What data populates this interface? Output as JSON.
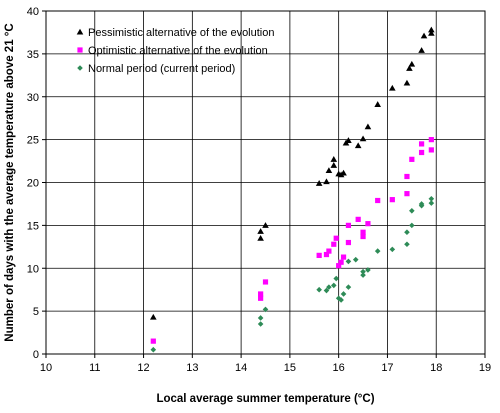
{
  "chart_data": {
    "type": "scatter",
    "xlabel": "Local average summer temperature (°C)",
    "ylabel": "Number of days with the average temperature above 21 °C",
    "xlim": [
      10,
      19
    ],
    "ylim": [
      0,
      40
    ],
    "xticks": [
      "10",
      "11",
      "12",
      "13",
      "14",
      "15",
      "16",
      "17",
      "18",
      "19"
    ],
    "yticks": [
      "0",
      "5",
      "10",
      "15",
      "20",
      "25",
      "30",
      "35",
      "40"
    ],
    "grid": true,
    "legend_position": "top-left",
    "series": [
      {
        "name": "Pessimistic alternative of the evolution",
        "marker": "triangle",
        "color": "#000000",
        "points": [
          [
            12.2,
            4.3
          ],
          [
            14.4,
            13.5
          ],
          [
            14.4,
            14.3
          ],
          [
            14.5,
            15.0
          ],
          [
            15.6,
            19.9
          ],
          [
            15.75,
            20.1
          ],
          [
            15.8,
            21.4
          ],
          [
            15.9,
            22.0
          ],
          [
            15.9,
            22.7
          ],
          [
            16.0,
            21.0
          ],
          [
            16.05,
            20.9
          ],
          [
            16.1,
            21.1
          ],
          [
            16.15,
            24.6
          ],
          [
            16.2,
            24.9
          ],
          [
            16.4,
            24.3
          ],
          [
            16.5,
            25.1
          ],
          [
            16.6,
            26.5
          ],
          [
            16.8,
            29.1
          ],
          [
            17.1,
            31.0
          ],
          [
            17.4,
            31.6
          ],
          [
            17.45,
            33.3
          ],
          [
            17.5,
            33.8
          ],
          [
            17.7,
            35.4
          ],
          [
            17.75,
            37.1
          ],
          [
            17.9,
            37.4
          ],
          [
            17.9,
            37.8
          ]
        ]
      },
      {
        "name": "Optimistic alternative of the evolution",
        "marker": "square",
        "color": "#ff00ff",
        "points": [
          [
            12.2,
            1.5
          ],
          [
            14.4,
            6.5
          ],
          [
            14.4,
            7.0
          ],
          [
            14.5,
            8.4
          ],
          [
            15.6,
            11.5
          ],
          [
            15.75,
            11.6
          ],
          [
            15.8,
            12.0
          ],
          [
            15.9,
            12.8
          ],
          [
            15.95,
            13.5
          ],
          [
            16.0,
            10.3
          ],
          [
            16.05,
            10.7
          ],
          [
            16.1,
            11.3
          ],
          [
            16.2,
            13.0
          ],
          [
            16.2,
            15.0
          ],
          [
            16.4,
            15.7
          ],
          [
            16.5,
            13.7
          ],
          [
            16.5,
            14.2
          ],
          [
            16.6,
            15.2
          ],
          [
            16.8,
            17.9
          ],
          [
            17.1,
            18.0
          ],
          [
            17.4,
            18.7
          ],
          [
            17.4,
            20.7
          ],
          [
            17.5,
            22.7
          ],
          [
            17.7,
            23.5
          ],
          [
            17.7,
            24.5
          ],
          [
            17.9,
            23.8
          ],
          [
            17.9,
            25.0
          ]
        ]
      },
      {
        "name": "Normal period (current period)",
        "marker": "diamond",
        "color": "#2e8b57",
        "points": [
          [
            12.2,
            0.5
          ],
          [
            14.4,
            3.5
          ],
          [
            14.4,
            4.2
          ],
          [
            14.5,
            5.2
          ],
          [
            15.6,
            7.5
          ],
          [
            15.75,
            7.4
          ],
          [
            15.8,
            7.8
          ],
          [
            15.9,
            8.0
          ],
          [
            15.95,
            8.8
          ],
          [
            16.0,
            6.5
          ],
          [
            16.05,
            6.3
          ],
          [
            16.1,
            7.0
          ],
          [
            16.2,
            7.8
          ],
          [
            16.2,
            10.8
          ],
          [
            16.35,
            11.0
          ],
          [
            16.5,
            9.2
          ],
          [
            16.5,
            9.6
          ],
          [
            16.6,
            9.8
          ],
          [
            16.8,
            12.0
          ],
          [
            17.1,
            12.2
          ],
          [
            17.4,
            12.8
          ],
          [
            17.4,
            14.2
          ],
          [
            17.5,
            16.7
          ],
          [
            17.5,
            15.0
          ],
          [
            17.7,
            17.5
          ],
          [
            17.7,
            17.3
          ],
          [
            17.9,
            17.6
          ],
          [
            17.9,
            18.1
          ]
        ]
      }
    ]
  }
}
